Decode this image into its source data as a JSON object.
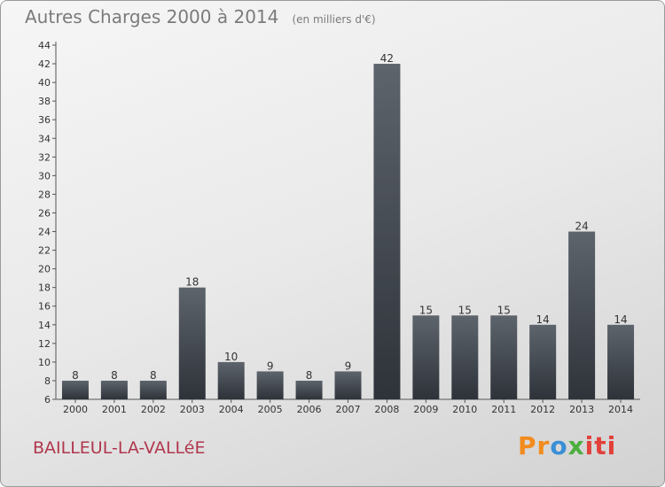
{
  "header": {
    "title": "Autres Charges 2000 à 2014",
    "unit_note": "(en milliers d'€)"
  },
  "footer": {
    "commune": "BAILLEUL-LA-VALLéE",
    "logo": "Proxiti",
    "logo_colors": [
      "#f28c1e",
      "#3a8fd6",
      "#4dae3f",
      "#e2403a"
    ]
  },
  "chart_data": {
    "type": "bar",
    "title": "Autres Charges 2000 à 2014",
    "xlabel": "",
    "ylabel": "",
    "categories": [
      "2000",
      "2001",
      "2002",
      "2003",
      "2004",
      "2005",
      "2006",
      "2007",
      "2008",
      "2009",
      "2010",
      "2011",
      "2012",
      "2013",
      "2014"
    ],
    "values": [
      8,
      8,
      8,
      18,
      10,
      9,
      8,
      9,
      42,
      15,
      15,
      15,
      14,
      24,
      14
    ],
    "ylim": [
      6,
      44
    ],
    "yticks": [
      6,
      8,
      10,
      12,
      14,
      16,
      18,
      20,
      22,
      24,
      26,
      28,
      30,
      32,
      34,
      36,
      38,
      40,
      42,
      44
    ],
    "data_labels": true,
    "grid": false,
    "bar_color_top": "#5e646c",
    "bar_color_bottom": "#2e333a"
  }
}
